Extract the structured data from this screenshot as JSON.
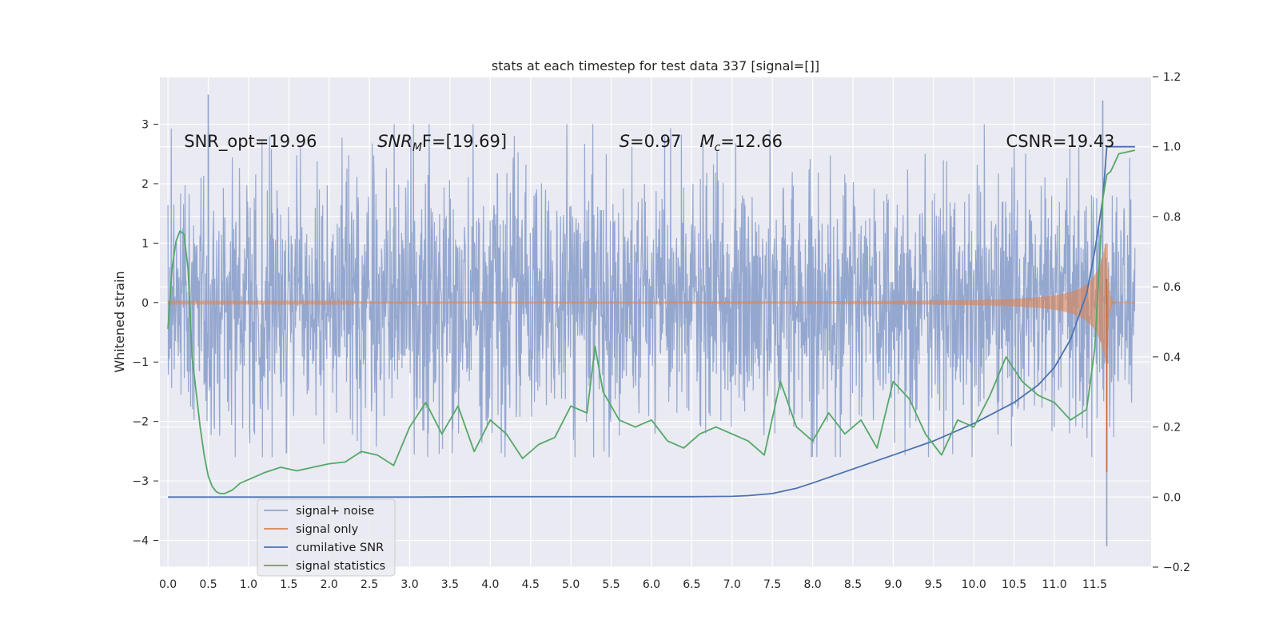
{
  "chart_data": {
    "type": "line",
    "title": "stats at each timestep for test data 337 [signal=[]]",
    "ylabel": "Whitened strain",
    "xlabel": "",
    "xlim": [
      -0.1,
      12.2
    ],
    "ylim": [
      -4.45,
      3.8
    ],
    "y2lim": [
      -0.2,
      1.2
    ],
    "x_ticks": [
      "0.0",
      "0.5",
      "1.0",
      "1.5",
      "2.0",
      "2.5",
      "3.0",
      "3.5",
      "4.0",
      "4.5",
      "5.0",
      "5.5",
      "6.0",
      "6.5",
      "7.0",
      "7.5",
      "8.0",
      "8.5",
      "9.0",
      "9.5",
      "10.0",
      "10.5",
      "11.0",
      "11.5"
    ],
    "y_ticks": [
      "3",
      "2",
      "1",
      "0",
      "−1",
      "−2",
      "−3",
      "−4"
    ],
    "y2_ticks": [
      "1.2",
      "1.0",
      "0.8",
      "0.6",
      "0.4",
      "0.2",
      "0.0",
      "−0.2"
    ],
    "grid": true,
    "legend_position": "lower-left",
    "annotations": [
      {
        "id": "snr-opt",
        "text": "SNR_opt=19.96",
        "x": 0.2
      },
      {
        "id": "snr-mf",
        "prefix": "SNR",
        "sub": "M",
        "suffix": "F=[19.69]",
        "x": 2.6
      },
      {
        "id": "s-val",
        "prefix": "S",
        "suffix": "=0.97",
        "x": 5.6
      },
      {
        "id": "mc-val",
        "prefix": "M",
        "sub": "c",
        "suffix": "=12.66",
        "x": 6.6
      },
      {
        "id": "csnr",
        "text": "CSNR=19.43",
        "x": 10.4
      }
    ],
    "series": [
      {
        "name": "signal+ noise",
        "color": "#8fa3cc",
        "axis": "left",
        "kind": "noise",
        "x_range": [
          0.0,
          12.0
        ],
        "envelope": 1.05,
        "peaks": [
          [
            0.5,
            3.5
          ],
          [
            11.6,
            3.4
          ],
          [
            11.65,
            -4.1
          ]
        ]
      },
      {
        "name": "signal only",
        "color": "#dd8452",
        "axis": "left",
        "kind": "chirp",
        "x_range": [
          0.0,
          12.0
        ],
        "merger_x": 11.65
      },
      {
        "name": "cumilative SNR",
        "color": "#4c72b0",
        "axis": "right",
        "x": [
          0.0,
          1.0,
          2.0,
          3.0,
          4.0,
          5.0,
          6.0,
          6.5,
          7.0,
          7.2,
          7.5,
          7.8,
          8.0,
          8.5,
          9.0,
          9.5,
          10.0,
          10.5,
          10.8,
          11.0,
          11.2,
          11.4,
          11.5,
          11.6,
          11.65,
          11.7,
          12.0
        ],
        "y": [
          0.0,
          0.0,
          0.0,
          0.0,
          0.001,
          0.001,
          0.001,
          0.001,
          0.002,
          0.004,
          0.01,
          0.025,
          0.04,
          0.08,
          0.12,
          0.16,
          0.21,
          0.27,
          0.32,
          0.37,
          0.45,
          0.58,
          0.7,
          0.85,
          1.0,
          1.0,
          1.0
        ]
      },
      {
        "name": "signal statistics",
        "color": "#55a868",
        "axis": "right",
        "x": [
          0.0,
          0.05,
          0.1,
          0.15,
          0.2,
          0.25,
          0.3,
          0.35,
          0.4,
          0.45,
          0.5,
          0.55,
          0.6,
          0.65,
          0.7,
          0.8,
          0.9,
          1.0,
          1.2,
          1.4,
          1.5,
          1.6,
          1.8,
          2.0,
          2.2,
          2.4,
          2.6,
          2.8,
          3.0,
          3.2,
          3.4,
          3.6,
          3.8,
          4.0,
          4.2,
          4.4,
          4.6,
          4.8,
          5.0,
          5.2,
          5.3,
          5.4,
          5.6,
          5.8,
          6.0,
          6.2,
          6.4,
          6.6,
          6.8,
          7.0,
          7.2,
          7.4,
          7.6,
          7.8,
          8.0,
          8.2,
          8.4,
          8.6,
          8.8,
          9.0,
          9.2,
          9.4,
          9.6,
          9.8,
          10.0,
          10.2,
          10.4,
          10.6,
          10.8,
          11.0,
          11.2,
          11.4,
          11.5,
          11.6,
          11.65,
          11.7,
          11.8,
          12.0
        ],
        "y": [
          0.48,
          0.65,
          0.73,
          0.76,
          0.75,
          0.65,
          0.4,
          0.3,
          0.2,
          0.12,
          0.06,
          0.03,
          0.015,
          0.01,
          0.01,
          0.02,
          0.04,
          0.05,
          0.07,
          0.085,
          0.08,
          0.075,
          0.085,
          0.095,
          0.1,
          0.13,
          0.12,
          0.09,
          0.2,
          0.27,
          0.18,
          0.26,
          0.13,
          0.22,
          0.18,
          0.11,
          0.15,
          0.17,
          0.26,
          0.24,
          0.43,
          0.3,
          0.22,
          0.2,
          0.22,
          0.16,
          0.14,
          0.18,
          0.2,
          0.18,
          0.16,
          0.12,
          0.33,
          0.2,
          0.16,
          0.24,
          0.18,
          0.22,
          0.14,
          0.33,
          0.28,
          0.18,
          0.12,
          0.22,
          0.2,
          0.29,
          0.4,
          0.33,
          0.29,
          0.27,
          0.22,
          0.25,
          0.42,
          0.85,
          0.92,
          0.93,
          0.98,
          0.99
        ]
      }
    ]
  }
}
